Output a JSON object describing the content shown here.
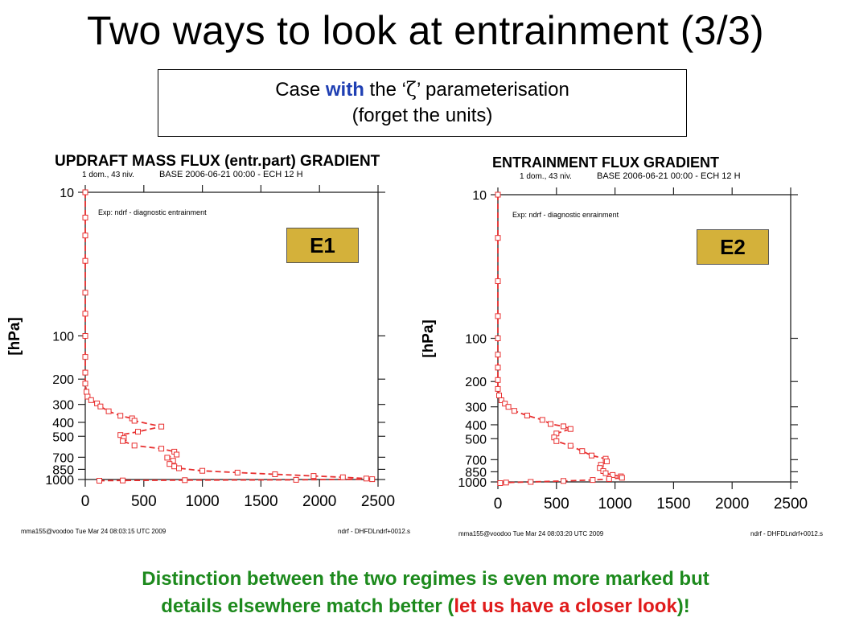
{
  "slide": {
    "title": "Two ways to look at entrainment (3/3)",
    "case_box": {
      "line1_pre": "Case ",
      "line1_highlight": "with",
      "line1_mid": " the ‘",
      "zeta_symbol": "ζ",
      "line1_post": "’ parameterisation",
      "line2": "(forget the units)"
    },
    "conclusion": {
      "line1": "Distinction between the two regimes is even more marked but",
      "line2_pre": "details elsewhere match better (",
      "line2_red": "let us have a closer look",
      "line2_post": ")!"
    },
    "colors": {
      "highlight_blue": "#1f3fb3",
      "conclusion_green": "#1d8a1d",
      "conclusion_red": "#e01b1b",
      "badge_gold": "#d4b13a",
      "series_red": "#e83030"
    }
  },
  "chart_data": [
    {
      "type": "line",
      "title": "UPDRAFT MASS FLUX (entr.part) GRADIENT",
      "subtitle_left": "1 dom., 43 niv.",
      "subtitle_right": "BASE 2006-06-21 00:00 - ECH 12 H",
      "ylabel": "[hPa]",
      "xlabel": "",
      "legend": "Exp: ndrf - diagnostic entrainment",
      "badge": "E1",
      "xlim": [
        0,
        2500
      ],
      "x_ticks": [
        "0",
        "500",
        "1000",
        "1500",
        "2000",
        "2500"
      ],
      "x_tick_values": [
        0,
        500,
        1000,
        1500,
        2000,
        2500
      ],
      "ylim": [
        10,
        1000
      ],
      "y_scale": "log",
      "y_inverted": true,
      "y_ticks": [
        "10",
        "100",
        "200",
        "300",
        "400",
        "500",
        "700",
        "850",
        "1000"
      ],
      "y_tick_values": [
        10,
        100,
        200,
        300,
        400,
        500,
        700,
        850,
        1000
      ],
      "footer_left": "mma155@voodoo Tue Mar 24 08:03:15 UTC 2009",
      "footer_right": "ndrf - DHFDLndrf+0012.s",
      "series": [
        {
          "marker": "open-square",
          "line": "dashed",
          "x": [
            0,
            0,
            0,
            0,
            0,
            0,
            0,
            0,
            0,
            0,
            10,
            20,
            50,
            100,
            130,
            200,
            300,
            400,
            420,
            650,
            450,
            300,
            330,
            320,
            420,
            650,
            760,
            780,
            700,
            750,
            720,
            760,
            800,
            1000,
            1300,
            1620,
            1950,
            2200,
            2400,
            2450,
            1800,
            850,
            320,
            120
          ],
          "y": [
            10,
            15,
            20,
            30,
            50,
            70,
            100,
            140,
            180,
            215,
            245,
            265,
            280,
            295,
            310,
            335,
            360,
            375,
            390,
            428,
            465,
            490,
            515,
            540,
            580,
            610,
            640,
            670,
            705,
            740,
            780,
            810,
            835,
            870,
            895,
            920,
            945,
            965,
            985,
            995,
            1005,
            1010,
            1015,
            1020
          ]
        }
      ]
    },
    {
      "type": "line",
      "title": "ENTRAINMENT FLUX GRADIENT",
      "subtitle_left": "1 dom., 43 niv.",
      "subtitle_right": "BASE 2006-06-21 00:00 - ECH 12 H",
      "ylabel": "[hPa]",
      "xlabel": "",
      "legend": "Exp: ndrf - diagnostic enrainment",
      "badge": "E2",
      "xlim": [
        0,
        2500
      ],
      "x_ticks": [
        "0",
        "500",
        "1000",
        "1500",
        "2000",
        "2500"
      ],
      "x_tick_values": [
        0,
        500,
        1000,
        1500,
        2000,
        2500
      ],
      "ylim": [
        10,
        1000
      ],
      "y_scale": "log",
      "y_inverted": true,
      "y_ticks": [
        "10",
        "100",
        "200",
        "300",
        "400",
        "500",
        "700",
        "850",
        "1000"
      ],
      "y_tick_values": [
        10,
        100,
        200,
        300,
        400,
        500,
        700,
        850,
        1000
      ],
      "footer_left": "mma155@voodoo Tue Mar 24 08:03:20 UTC 2009",
      "footer_right": "ndrf - DHFDLndrf+0012.s",
      "series": [
        {
          "marker": "open-square",
          "line": "dashed",
          "x": [
            0,
            0,
            0,
            0,
            0,
            0,
            0,
            0,
            0,
            10,
            30,
            60,
            90,
            140,
            250,
            380,
            450,
            560,
            620,
            500,
            480,
            500,
            620,
            720,
            800,
            920,
            930,
            880,
            870,
            900,
            920,
            980,
            1050,
            1060,
            950,
            810,
            560,
            280,
            70,
            20
          ],
          "y": [
            10,
            20,
            40,
            70,
            100,
            130,
            160,
            195,
            225,
            250,
            270,
            285,
            300,
            320,
            345,
            370,
            395,
            410,
            428,
            460,
            490,
            520,
            560,
            610,
            655,
            690,
            720,
            760,
            800,
            840,
            870,
            895,
            915,
            935,
            955,
            970,
            985,
            1000,
            1010,
            1020
          ]
        }
      ]
    }
  ]
}
